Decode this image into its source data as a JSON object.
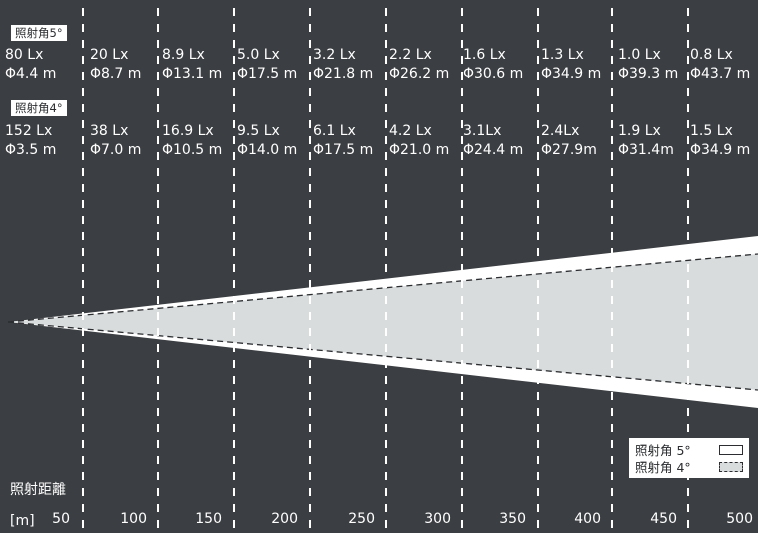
{
  "diagram": {
    "colors": {
      "background": "#3b3e42",
      "text": "#ffffff",
      "cone_5deg": "#ffffff",
      "cone_4deg": "#d9dcdd",
      "dashed_lines": "#2b2d30"
    },
    "labels": {
      "beam_5deg": "照射角5°",
      "beam_4deg": "照射角4°"
    },
    "rows_5deg": [
      {
        "lux": "80 Lx",
        "diameter": "Φ4.4 m"
      },
      {
        "lux": "20 Lx",
        "diameter": "Φ8.7 m"
      },
      {
        "lux": "8.9 Lx",
        "diameter": "Φ13.1 m"
      },
      {
        "lux": "5.0 Lx",
        "diameter": "Φ17.5 m"
      },
      {
        "lux": "3.2 Lx",
        "diameter": "Φ21.8 m"
      },
      {
        "lux": "2.2 Lx",
        "diameter": "Φ26.2 m"
      },
      {
        "lux": "1.6 Lx",
        "diameter": "Φ30.6 m"
      },
      {
        "lux": "1.3 Lx",
        "diameter": "Φ34.9 m"
      },
      {
        "lux": "1.0 Lx",
        "diameter": "Φ39.3 m"
      },
      {
        "lux": "0.8 Lx",
        "diameter": "Φ43.7 m"
      }
    ],
    "rows_4deg": [
      {
        "lux": "152 Lx",
        "diameter": "Φ3.5 m"
      },
      {
        "lux": "38 Lx",
        "diameter": "Φ7.0 m"
      },
      {
        "lux": "16.9 Lx",
        "diameter": "Φ10.5 m"
      },
      {
        "lux": "9.5 Lx",
        "diameter": "Φ14.0 m"
      },
      {
        "lux": "6.1 Lx",
        "diameter": "Φ17.5 m"
      },
      {
        "lux": "4.2 Lx",
        "diameter": "Φ21.0 m"
      },
      {
        "lux": "3.1Lx",
        "diameter": "Φ24.4 m"
      },
      {
        "lux": "2.4Lx",
        "diameter": "Φ27.9m"
      },
      {
        "lux": "1.9 Lx",
        "diameter": "Φ31.4m"
      },
      {
        "lux": "1.5 Lx",
        "diameter": "Φ34.9 m"
      }
    ],
    "distance_axis": {
      "title": "照射距離",
      "unit": "[m]",
      "ticks": [
        "50",
        "100",
        "150",
        "200",
        "250",
        "300",
        "350",
        "400",
        "450",
        "500"
      ]
    },
    "legend": {
      "beam_5deg": "照射角 5°",
      "beam_4deg": "照射角 4°"
    }
  }
}
